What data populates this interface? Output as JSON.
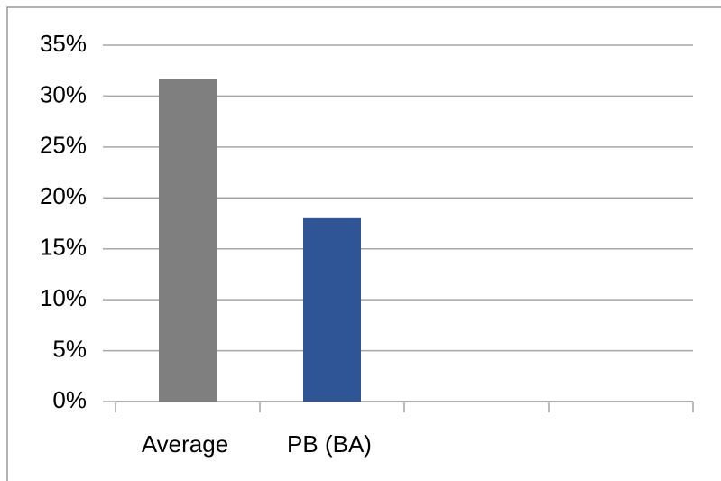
{
  "chart_data": {
    "type": "bar",
    "categories": [
      "Average",
      "PB (BA)",
      null,
      null
    ],
    "values": [
      31.7,
      18,
      null,
      null
    ],
    "colors": [
      "#7f7f7f",
      "#2f5597",
      null,
      null
    ],
    "ylim": [
      0,
      35
    ],
    "yticks": [
      {
        "value": 0,
        "label": "0%"
      },
      {
        "value": 5,
        "label": "5%"
      },
      {
        "value": 10,
        "label": "10%"
      },
      {
        "value": 15,
        "label": "15%"
      },
      {
        "value": 20,
        "label": "20%"
      },
      {
        "value": 25,
        "label": "25%"
      },
      {
        "value": 30,
        "label": "30%"
      },
      {
        "value": 35,
        "label": "35%"
      }
    ],
    "grid": true
  }
}
